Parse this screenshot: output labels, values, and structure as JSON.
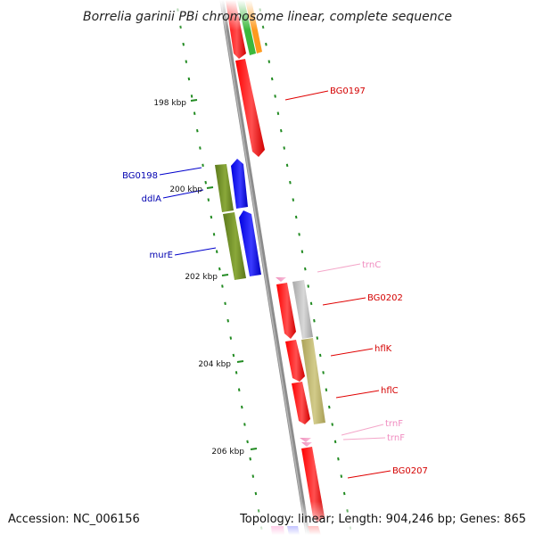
{
  "title": "Borrelia garinii PBi chromosome linear, complete sequence",
  "footer": {
    "accession": "Accession: NC_006156",
    "summary": "Topology: linear; Length: 904,246 bp; Genes: 865"
  },
  "ticks": [
    {
      "label": "198 kbp",
      "pos_kbp": 198
    },
    {
      "label": "200 kbp",
      "pos_kbp": 200
    },
    {
      "label": "202 kbp",
      "pos_kbp": 202
    },
    {
      "label": "204 kbp",
      "pos_kbp": 204
    },
    {
      "label": "206 kbp",
      "pos_kbp": 206
    }
  ],
  "colors": {
    "backbone": "#8c8c8c",
    "cds_red": "#ff0000",
    "cds_blue": "#0000ff",
    "cds_olive": "#6b8e23",
    "cds_grey": "#bfbfbf",
    "cds_khaki": "#bdb76b",
    "trna_pink": "#f4a6c9",
    "guide_green": "#228b22"
  },
  "genes": [
    {
      "label": "BG0197",
      "strand": "+",
      "color": "#ff0000"
    },
    {
      "label": "BG0198",
      "strand": "-",
      "color": "#0000ff"
    },
    {
      "label": "ddlA",
      "strand": "-",
      "color": "#6b8e23"
    },
    {
      "label": "murE",
      "strand": "-",
      "color": "#0000ff"
    },
    {
      "label": "trnC",
      "strand": "+",
      "color": "#f4a6c9"
    },
    {
      "label": "BG0202",
      "strand": "+",
      "color": "#ff0000"
    },
    {
      "label": "hflK",
      "strand": "+",
      "color": "#ff0000"
    },
    {
      "label": "hflC",
      "strand": "+",
      "color": "#ff0000"
    },
    {
      "label": "trnF",
      "strand": "+",
      "color": "#f4a6c9"
    },
    {
      "label": "trnF",
      "strand": "+",
      "color": "#f4a6c9"
    },
    {
      "label": "BG0207",
      "strand": "+",
      "color": "#ff0000"
    }
  ]
}
